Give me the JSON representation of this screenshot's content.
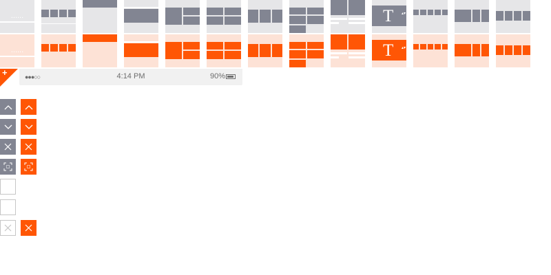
{
  "status_bar": {
    "signal": "●●●○○",
    "time": "4:14 PM",
    "battery": "90%"
  },
  "tiles": {
    "dots_label": "......",
    "text_template_glyph": "T",
    "text_template_arrows": "▴▾"
  },
  "controls": {
    "add_label": "+",
    "rows": [
      "move-up",
      "move-down",
      "remove",
      "fullscreen",
      "empty",
      "empty",
      "remove-outline"
    ]
  },
  "colors": {
    "accent": "#ff5605",
    "neutral": "#828592",
    "panel": "#e6e6e8",
    "accent_light": "#fde2d6",
    "status_bg": "#f1f1f1"
  }
}
